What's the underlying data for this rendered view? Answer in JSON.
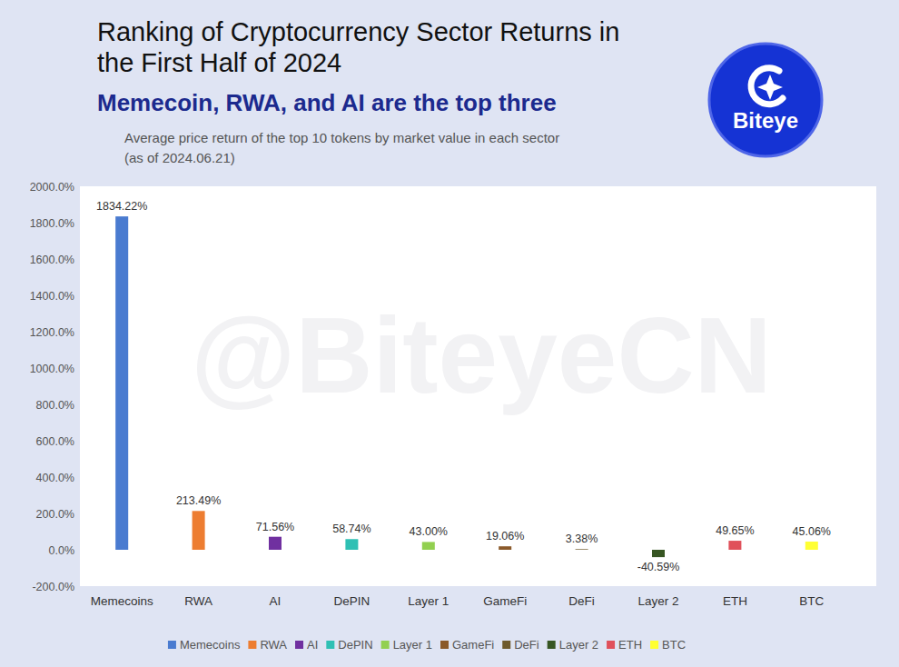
{
  "chart_data": {
    "type": "bar",
    "title": "Ranking of Cryptocurrency Sector Returns in\nthe First Half of 2024",
    "subtitle": "Memecoin, RWA, and AI are the top three",
    "note": "Average price return of the top 10 tokens by market value in each sector\n(as of 2024.06.21)",
    "logo": "Biteye",
    "watermark": "@BiteyeCN",
    "categories": [
      "Memecoins",
      "RWA",
      "AI",
      "DePIN",
      "Layer 1",
      "GameFi",
      "DeFi",
      "Layer 2",
      "ETH",
      "BTC"
    ],
    "values": [
      1834.22,
      213.49,
      71.56,
      58.74,
      43.0,
      19.06,
      3.38,
      -40.59,
      49.65,
      45.06
    ],
    "value_labels": [
      "1834.22%",
      "213.49%",
      "71.56%",
      "58.74%",
      "43.00%",
      "19.06%",
      "3.38%",
      "-40.59%",
      "49.65%",
      "45.06%"
    ],
    "colors": [
      "#4a7bd0",
      "#ed7d31",
      "#7030a0",
      "#2fc0b4",
      "#92d050",
      "#8b5a2b",
      "#6e5a2c",
      "#375623",
      "#e0505a",
      "#ffff33"
    ],
    "ylim": [
      -200,
      2000
    ],
    "yticks": [
      {
        "value": -200,
        "label": "-200.0%"
      },
      {
        "value": 0,
        "label": "0.0%"
      },
      {
        "value": 200,
        "label": "200.0%"
      },
      {
        "value": 400,
        "label": "400.0%"
      },
      {
        "value": 600,
        "label": "600.0%"
      },
      {
        "value": 800,
        "label": "800.0%"
      },
      {
        "value": 1000,
        "label": "1000.0%"
      },
      {
        "value": 1200,
        "label": "1200.0%"
      },
      {
        "value": 1400,
        "label": "1400.0%"
      },
      {
        "value": 1600,
        "label": "1600.0%"
      },
      {
        "value": 1800,
        "label": "1800.0%"
      },
      {
        "value": 2000,
        "label": "2000.0%"
      }
    ],
    "grid": false,
    "data_labels": true,
    "legend": "bottom"
  }
}
